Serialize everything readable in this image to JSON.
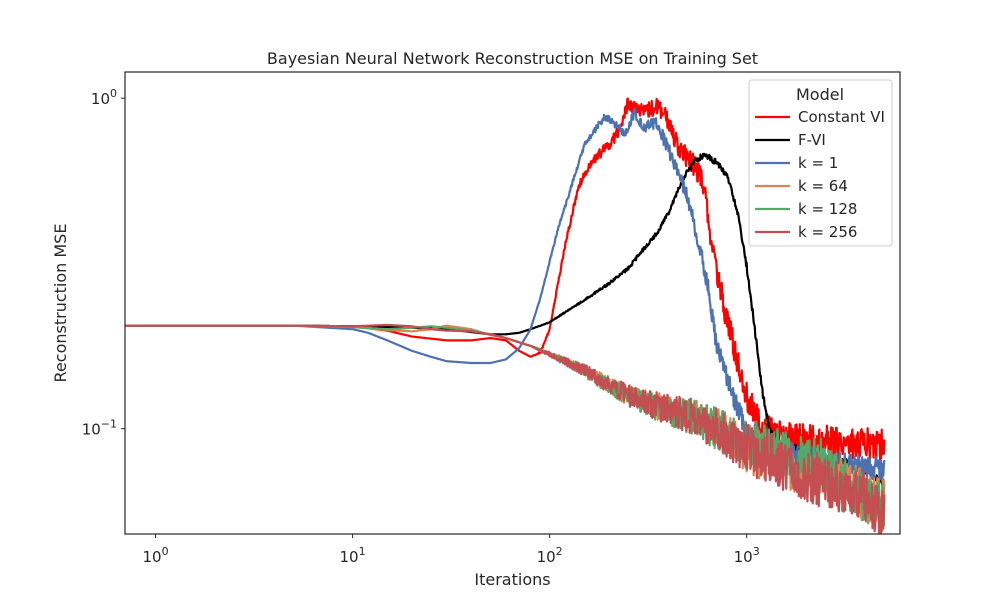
{
  "chart_data": {
    "type": "line",
    "title": "Bayesian Neural Network Reconstruction MSE on Training Set",
    "xlabel": "Iterations",
    "ylabel": "Reconstruction MSE",
    "xscale": "log",
    "yscale": "log",
    "xlim": [
      0.7,
      6000
    ],
    "ylim": [
      0.048,
      1.2
    ],
    "x_ticks": [
      {
        "value": 1,
        "base": "10",
        "exp": "0"
      },
      {
        "value": 10,
        "base": "10",
        "exp": "1"
      },
      {
        "value": 100,
        "base": "10",
        "exp": "2"
      },
      {
        "value": 1000,
        "base": "10",
        "exp": "3"
      }
    ],
    "y_ticks": [
      {
        "value": 1,
        "base": "10",
        "exp": "0"
      },
      {
        "value": 0.1,
        "base": "10",
        "exp": "−1"
      }
    ],
    "grid": false,
    "legend": {
      "title": "Model",
      "placement": "top-right"
    },
    "series": [
      {
        "name": "Constant VI",
        "color": "#ff0000",
        "noise": 0.05,
        "x": [
          0.7,
          5,
          10,
          15,
          20,
          30,
          40,
          50,
          60,
          70,
          80,
          90,
          100,
          120,
          140,
          160,
          180,
          200,
          230,
          250,
          300,
          350,
          400,
          450,
          500,
          550,
          600,
          650,
          700,
          800,
          900,
          1000,
          1100,
          1200,
          1500,
          2000,
          3000,
          5000
        ],
        "y": [
          0.205,
          0.205,
          0.204,
          0.198,
          0.19,
          0.185,
          0.185,
          0.188,
          0.185,
          0.172,
          0.165,
          0.17,
          0.2,
          0.36,
          0.54,
          0.63,
          0.68,
          0.72,
          0.82,
          0.97,
          0.9,
          0.95,
          0.85,
          0.72,
          0.65,
          0.62,
          0.56,
          0.4,
          0.3,
          0.21,
          0.16,
          0.125,
          0.11,
          0.1,
          0.094,
          0.092,
          0.091,
          0.089
        ]
      },
      {
        "name": "F-VI",
        "color": "#000000",
        "noise": 0.012,
        "x": [
          0.7,
          5,
          10,
          15,
          20,
          30,
          40,
          50,
          60,
          70,
          80,
          90,
          100,
          120,
          150,
          200,
          250,
          300,
          350,
          400,
          450,
          500,
          550,
          600,
          650,
          700,
          800,
          900,
          1000,
          1100,
          1200,
          1300,
          1500,
          2000,
          3000,
          4000,
          5000
        ],
        "y": [
          0.205,
          0.205,
          0.204,
          0.203,
          0.202,
          0.2,
          0.196,
          0.193,
          0.193,
          0.195,
          0.2,
          0.205,
          0.21,
          0.225,
          0.245,
          0.275,
          0.305,
          0.35,
          0.39,
          0.45,
          0.53,
          0.6,
          0.65,
          0.67,
          0.66,
          0.64,
          0.58,
          0.45,
          0.31,
          0.2,
          0.13,
          0.1,
          0.09,
          0.085,
          0.08,
          0.075,
          0.068
        ]
      },
      {
        "name": "k = 1",
        "color": "#4c72b0",
        "noise": 0.035,
        "x": [
          0.7,
          5,
          10,
          12,
          15,
          20,
          25,
          30,
          40,
          50,
          60,
          70,
          80,
          90,
          100,
          110,
          130,
          150,
          170,
          190,
          210,
          240,
          270,
          300,
          350,
          400,
          450,
          500,
          550,
          600,
          650,
          700,
          800,
          900,
          1000,
          1200,
          1500,
          2000,
          3000,
          5000
        ],
        "y": [
          0.205,
          0.205,
          0.2,
          0.195,
          0.185,
          0.172,
          0.165,
          0.16,
          0.158,
          0.158,
          0.162,
          0.175,
          0.2,
          0.25,
          0.32,
          0.4,
          0.55,
          0.72,
          0.8,
          0.88,
          0.84,
          0.78,
          0.9,
          0.82,
          0.84,
          0.7,
          0.6,
          0.5,
          0.4,
          0.32,
          0.25,
          0.18,
          0.14,
          0.115,
          0.1,
          0.092,
          0.085,
          0.082,
          0.078,
          0.075
        ]
      },
      {
        "name": "k = 64",
        "color": "#dd8452",
        "noise": 0.08,
        "x": [
          0.7,
          5,
          10,
          15,
          20,
          25,
          30,
          40,
          50,
          60,
          80,
          100,
          150,
          200,
          300,
          500,
          700,
          1000,
          1500,
          2000,
          3000,
          4000,
          5000
        ],
        "y": [
          0.205,
          0.205,
          0.203,
          0.199,
          0.197,
          0.2,
          0.205,
          0.2,
          0.192,
          0.188,
          0.178,
          0.168,
          0.15,
          0.135,
          0.12,
          0.11,
          0.1,
          0.087,
          0.08,
          0.075,
          0.068,
          0.062,
          0.058
        ]
      },
      {
        "name": "k = 128",
        "color": "#55a868",
        "noise": 0.08,
        "x": [
          0.7,
          5,
          10,
          15,
          20,
          25,
          30,
          40,
          50,
          60,
          80,
          100,
          150,
          200,
          300,
          500,
          700,
          1000,
          1500,
          2000,
          2500,
          3000,
          4000,
          5000
        ],
        "y": [
          0.205,
          0.205,
          0.203,
          0.2,
          0.202,
          0.204,
          0.202,
          0.198,
          0.193,
          0.188,
          0.178,
          0.168,
          0.15,
          0.135,
          0.12,
          0.11,
          0.1,
          0.09,
          0.083,
          0.079,
          0.078,
          0.068,
          0.062,
          0.057
        ]
      },
      {
        "name": "k = 256",
        "color": "#c44e52",
        "noise": 0.08,
        "x": [
          0.7,
          5,
          10,
          15,
          20,
          25,
          30,
          40,
          50,
          60,
          80,
          100,
          150,
          200,
          300,
          500,
          700,
          1000,
          1500,
          2000,
          3000,
          4000,
          5000
        ],
        "y": [
          0.205,
          0.205,
          0.204,
          0.206,
          0.204,
          0.2,
          0.198,
          0.197,
          0.193,
          0.188,
          0.178,
          0.168,
          0.15,
          0.135,
          0.12,
          0.11,
          0.1,
          0.087,
          0.078,
          0.072,
          0.066,
          0.061,
          0.056
        ]
      }
    ]
  }
}
